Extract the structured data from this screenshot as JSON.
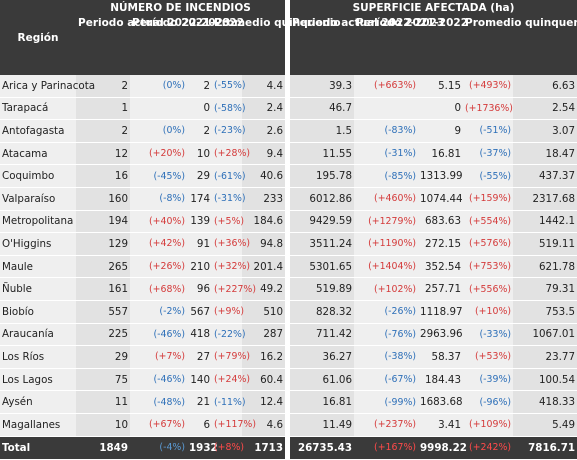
{
  "headers": {
    "region": "Región",
    "group_fires": "NÚMERO DE INCENDIOS",
    "group_area": "SUPERFICIE AFECTADA (ha)",
    "fires": {
      "current": "Periodo actual 2022-2023",
      "previous": "Período 2021-2022",
      "avg": "Promedio quinquenio"
    },
    "area": {
      "current": "Periodo actual 2022-2023",
      "previous": "Período 2021-2022",
      "avg": "Promedio quinquenio"
    }
  },
  "rows": [
    {
      "region": "Arica y Parinacota",
      "f_cur": "2",
      "f_prev_pct": "(0%)",
      "f_prev_dir": "neg",
      "f_prev": "2",
      "f_avg_pct": "(-55%)",
      "f_avg_dir": "neg",
      "f_avg": "4.4",
      "a_cur": "39.3",
      "a_prev_pct": "(+663%)",
      "a_prev_dir": "pos",
      "a_prev": "5.15",
      "a_avg_pct": "(+493%)",
      "a_avg_dir": "pos",
      "a_avg": "6.63"
    },
    {
      "region": "Tarapacá",
      "f_cur": "1",
      "f_prev_pct": "",
      "f_prev_dir": "neg",
      "f_prev": "0",
      "f_avg_pct": "(-58%)",
      "f_avg_dir": "neg",
      "f_avg": "2.4",
      "a_cur": "46.7",
      "a_prev_pct": "",
      "a_prev_dir": "pos",
      "a_prev": "0",
      "a_avg_pct": "(+1736%)",
      "a_avg_dir": "pos",
      "a_avg": "2.54"
    },
    {
      "region": "Antofagasta",
      "f_cur": "2",
      "f_prev_pct": "(0%)",
      "f_prev_dir": "neg",
      "f_prev": "2",
      "f_avg_pct": "(-23%)",
      "f_avg_dir": "neg",
      "f_avg": "2.6",
      "a_cur": "1.5",
      "a_prev_pct": "(-83%)",
      "a_prev_dir": "neg",
      "a_prev": "9",
      "a_avg_pct": "(-51%)",
      "a_avg_dir": "neg",
      "a_avg": "3.07"
    },
    {
      "region": "Atacama",
      "f_cur": "12",
      "f_prev_pct": "(+20%)",
      "f_prev_dir": "pos",
      "f_prev": "10",
      "f_avg_pct": "(+28%)",
      "f_avg_dir": "pos",
      "f_avg": "9.4",
      "a_cur": "11.55",
      "a_prev_pct": "(-31%)",
      "a_prev_dir": "neg",
      "a_prev": "16.81",
      "a_avg_pct": "(-37%)",
      "a_avg_dir": "neg",
      "a_avg": "18.47"
    },
    {
      "region": "Coquimbo",
      "f_cur": "16",
      "f_prev_pct": "(-45%)",
      "f_prev_dir": "neg",
      "f_prev": "29",
      "f_avg_pct": "(-61%)",
      "f_avg_dir": "neg",
      "f_avg": "40.6",
      "a_cur": "195.78",
      "a_prev_pct": "(-85%)",
      "a_prev_dir": "neg",
      "a_prev": "1313.99",
      "a_avg_pct": "(-55%)",
      "a_avg_dir": "neg",
      "a_avg": "437.37"
    },
    {
      "region": "Valparaíso",
      "f_cur": "160",
      "f_prev_pct": "(-8%)",
      "f_prev_dir": "neg",
      "f_prev": "174",
      "f_avg_pct": "(-31%)",
      "f_avg_dir": "neg",
      "f_avg": "233",
      "a_cur": "6012.86",
      "a_prev_pct": "(+460%)",
      "a_prev_dir": "pos",
      "a_prev": "1074.44",
      "a_avg_pct": "(+159%)",
      "a_avg_dir": "pos",
      "a_avg": "2317.68"
    },
    {
      "region": "Metropolitana",
      "f_cur": "194",
      "f_prev_pct": "(+40%)",
      "f_prev_dir": "pos",
      "f_prev": "139",
      "f_avg_pct": "(+5%)",
      "f_avg_dir": "pos",
      "f_avg": "184.6",
      "a_cur": "9429.59",
      "a_prev_pct": "(+1279%)",
      "a_prev_dir": "pos",
      "a_prev": "683.63",
      "a_avg_pct": "(+554%)",
      "a_avg_dir": "pos",
      "a_avg": "1442.1"
    },
    {
      "region": "O'Higgins",
      "f_cur": "129",
      "f_prev_pct": "(+42%)",
      "f_prev_dir": "pos",
      "f_prev": "91",
      "f_avg_pct": "(+36%)",
      "f_avg_dir": "pos",
      "f_avg": "94.8",
      "a_cur": "3511.24",
      "a_prev_pct": "(+1190%)",
      "a_prev_dir": "pos",
      "a_prev": "272.15",
      "a_avg_pct": "(+576%)",
      "a_avg_dir": "pos",
      "a_avg": "519.11"
    },
    {
      "region": "Maule",
      "f_cur": "265",
      "f_prev_pct": "(+26%)",
      "f_prev_dir": "pos",
      "f_prev": "210",
      "f_avg_pct": "(+32%)",
      "f_avg_dir": "pos",
      "f_avg": "201.4",
      "a_cur": "5301.65",
      "a_prev_pct": "(+1404%)",
      "a_prev_dir": "pos",
      "a_prev": "352.54",
      "a_avg_pct": "(+753%)",
      "a_avg_dir": "pos",
      "a_avg": "621.78"
    },
    {
      "region": "Ñuble",
      "f_cur": "161",
      "f_prev_pct": "(+68%)",
      "f_prev_dir": "pos",
      "f_prev": "96",
      "f_avg_pct": "(+227%)",
      "f_avg_dir": "pos",
      "f_avg": "49.2",
      "a_cur": "519.89",
      "a_prev_pct": "(+102%)",
      "a_prev_dir": "pos",
      "a_prev": "257.71",
      "a_avg_pct": "(+556%)",
      "a_avg_dir": "pos",
      "a_avg": "79.31"
    },
    {
      "region": "Biobío",
      "f_cur": "557",
      "f_prev_pct": "(-2%)",
      "f_prev_dir": "neg",
      "f_prev": "567",
      "f_avg_pct": "(+9%)",
      "f_avg_dir": "pos",
      "f_avg": "510",
      "a_cur": "828.32",
      "a_prev_pct": "(-26%)",
      "a_prev_dir": "neg",
      "a_prev": "1118.97",
      "a_avg_pct": "(+10%)",
      "a_avg_dir": "pos",
      "a_avg": "753.5"
    },
    {
      "region": "Araucanía",
      "f_cur": "225",
      "f_prev_pct": "(-46%)",
      "f_prev_dir": "neg",
      "f_prev": "418",
      "f_avg_pct": "(-22%)",
      "f_avg_dir": "neg",
      "f_avg": "287",
      "a_cur": "711.42",
      "a_prev_pct": "(-76%)",
      "a_prev_dir": "neg",
      "a_prev": "2963.96",
      "a_avg_pct": "(-33%)",
      "a_avg_dir": "neg",
      "a_avg": "1067.01"
    },
    {
      "region": "Los Ríos",
      "f_cur": "29",
      "f_prev_pct": "(+7%)",
      "f_prev_dir": "pos",
      "f_prev": "27",
      "f_avg_pct": "(+79%)",
      "f_avg_dir": "pos",
      "f_avg": "16.2",
      "a_cur": "36.27",
      "a_prev_pct": "(-38%)",
      "a_prev_dir": "neg",
      "a_prev": "58.37",
      "a_avg_pct": "(+53%)",
      "a_avg_dir": "pos",
      "a_avg": "23.77"
    },
    {
      "region": "Los Lagos",
      "f_cur": "75",
      "f_prev_pct": "(-46%)",
      "f_prev_dir": "neg",
      "f_prev": "140",
      "f_avg_pct": "(+24%)",
      "f_avg_dir": "pos",
      "f_avg": "60.4",
      "a_cur": "61.06",
      "a_prev_pct": "(-67%)",
      "a_prev_dir": "neg",
      "a_prev": "184.43",
      "a_avg_pct": "(-39%)",
      "a_avg_dir": "neg",
      "a_avg": "100.54"
    },
    {
      "region": "Aysén",
      "f_cur": "11",
      "f_prev_pct": "(-48%)",
      "f_prev_dir": "neg",
      "f_prev": "21",
      "f_avg_pct": "(-11%)",
      "f_avg_dir": "neg",
      "f_avg": "12.4",
      "a_cur": "16.81",
      "a_prev_pct": "(-99%)",
      "a_prev_dir": "neg",
      "a_prev": "1683.68",
      "a_avg_pct": "(-96%)",
      "a_avg_dir": "neg",
      "a_avg": "418.33"
    },
    {
      "region": "Magallanes",
      "f_cur": "10",
      "f_prev_pct": "(+67%)",
      "f_prev_dir": "pos",
      "f_prev": "6",
      "f_avg_pct": "(+117%)",
      "f_avg_dir": "pos",
      "f_avg": "4.6",
      "a_cur": "11.49",
      "a_prev_pct": "(+237%)",
      "a_prev_dir": "pos",
      "a_prev": "3.41",
      "a_avg_pct": "(+109%)",
      "a_avg_dir": "pos",
      "a_avg": "5.49"
    }
  ],
  "total": {
    "region": "Total",
    "f_cur": "1849",
    "f_prev_pct": "(-4%)",
    "f_prev_dir": "neg",
    "f_prev": "1932",
    "f_avg_pct": "(+8%)",
    "f_avg_dir": "pos",
    "f_avg": "1713",
    "a_cur": "26735.43",
    "a_prev_pct": "(+167%)",
    "a_prev_dir": "pos",
    "a_prev": "9998.22",
    "a_avg_pct": "(+242%)",
    "a_avg_dir": "pos",
    "a_avg": "7816.71"
  },
  "colors": {
    "increase": "#d43a3a",
    "decrease": "#2d6fb8",
    "header_bg": "#3a3a3a"
  }
}
